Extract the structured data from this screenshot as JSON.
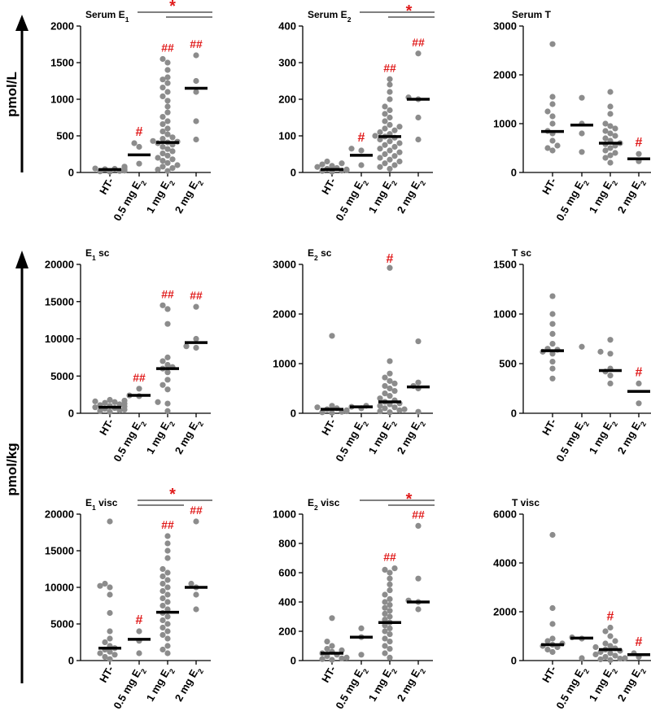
{
  "colors": {
    "dots": "#8c8c8c",
    "median": "#000000",
    "significance": "#e01b1b",
    "axis": "#000000"
  },
  "axis_labels": {
    "serum": "pmol/L",
    "tissue": "pmol/kg"
  },
  "groups": [
    "HT-",
    "0.5 mg E2",
    "1 mg E2",
    "2 mg E2"
  ],
  "chart_data": [
    {
      "type": "scatter",
      "id": "serum_e1",
      "title": "Serum E",
      "title_sub": "1",
      "ylim": [
        0,
        2000
      ],
      "yticks": [
        0,
        500,
        1000,
        1500,
        2000
      ],
      "medians": [
        40,
        240,
        410,
        1150
      ],
      "values": [
        [
          10,
          15,
          20,
          25,
          30,
          35,
          40,
          45,
          50,
          55,
          60,
          70,
          80
        ],
        [
          120,
          350,
          400
        ],
        [
          20,
          40,
          60,
          80,
          100,
          130,
          160,
          180,
          200,
          230,
          260,
          290,
          320,
          350,
          380,
          400,
          410,
          420,
          430,
          460,
          480,
          520,
          560,
          600,
          660,
          700,
          760,
          820,
          900,
          980,
          1040,
          1100,
          1160,
          1220,
          1270,
          1300,
          1400,
          1500,
          1550
        ],
        [
          450,
          700,
          1100,
          1250,
          1600
        ]
      ],
      "sig_markers": [
        "",
        "#",
        "##",
        "##"
      ],
      "brackets": [
        {
          "from_group": 1,
          "to_group": 3,
          "label": "*"
        },
        {
          "from_group": 2,
          "to_group": 3,
          "label": ""
        }
      ]
    },
    {
      "type": "scatter",
      "id": "serum_e2",
      "title": "Serum E",
      "title_sub": "2",
      "ylim": [
        0,
        400
      ],
      "yticks": [
        0,
        100,
        200,
        300,
        400
      ],
      "medians": [
        8,
        47,
        98,
        200
      ],
      "values": [
        [
          2,
          4,
          5,
          6,
          8,
          10,
          12,
          15,
          18,
          22,
          25,
          30
        ],
        [
          20,
          60,
          65
        ],
        [
          10,
          15,
          20,
          25,
          30,
          35,
          40,
          45,
          50,
          55,
          60,
          65,
          70,
          75,
          80,
          85,
          90,
          95,
          98,
          100,
          105,
          110,
          115,
          120,
          125,
          130,
          140,
          150,
          160,
          170,
          180,
          200,
          220,
          240,
          255
        ],
        [
          90,
          150,
          200,
          205,
          325
        ]
      ],
      "sig_markers": [
        "",
        "#",
        "##",
        "##"
      ],
      "brackets": [
        {
          "from_group": 1,
          "to_group": 3,
          "label": ""
        },
        {
          "from_group": 2,
          "to_group": 3,
          "label": "*"
        }
      ]
    },
    {
      "type": "scatter",
      "id": "serum_t",
      "title": "Serum T",
      "title_sub": "",
      "ylim": [
        0,
        3000
      ],
      "yticks": [
        0,
        1000,
        2000,
        3000
      ],
      "medians": [
        840,
        970,
        600,
        280
      ],
      "values": [
        [
          450,
          500,
          550,
          650,
          800,
          850,
          1000,
          1150,
          1250,
          1400,
          1550,
          2630
        ],
        [
          420,
          800,
          1000,
          1530
        ],
        [
          200,
          300,
          350,
          400,
          450,
          500,
          550,
          580,
          600,
          650,
          700,
          750,
          800,
          850,
          900,
          950,
          1000,
          1200,
          1350,
          1650
        ],
        [
          230,
          380
        ]
      ],
      "sig_markers": [
        "",
        "",
        "",
        "#"
      ],
      "brackets": []
    },
    {
      "type": "scatter",
      "id": "e1_sc",
      "title": "E",
      "title_sub": "1",
      "title_suffix": " sc",
      "ylim": [
        0,
        20000
      ],
      "yticks": [
        0,
        5000,
        10000,
        15000,
        20000
      ],
      "medians": [
        800,
        2400,
        6000,
        9500
      ],
      "values": [
        [
          200,
          300,
          400,
          500,
          600,
          700,
          800,
          900,
          1000,
          1100,
          1200,
          1300,
          1400,
          1500,
          1600,
          1700,
          1800
        ],
        [
          2300,
          2400,
          3300
        ],
        [
          300,
          1300,
          1500,
          3200,
          3800,
          4500,
          5500,
          6000,
          6200,
          6500,
          7000,
          7500,
          12000,
          14000,
          14500
        ],
        [
          8800,
          9000,
          10000,
          14300
        ]
      ],
      "sig_markers": [
        "",
        "##",
        "##",
        "##"
      ],
      "brackets": []
    },
    {
      "type": "scatter",
      "id": "e2_sc",
      "title": "E",
      "title_sub": "2",
      "title_suffix": " sc",
      "ylim": [
        0,
        3000
      ],
      "yticks": [
        0,
        1000,
        2000,
        3000
      ],
      "medians": [
        80,
        130,
        230,
        530
      ],
      "values": [
        [
          10,
          20,
          30,
          40,
          50,
          60,
          80,
          100,
          120,
          150,
          1560
        ],
        [
          100,
          130,
          150
        ],
        [
          20,
          40,
          60,
          80,
          100,
          120,
          150,
          180,
          200,
          230,
          260,
          300,
          350,
          400,
          450,
          500,
          550,
          600,
          650,
          720,
          800,
          1050,
          2930
        ],
        [
          30,
          500,
          550,
          620,
          1450
        ]
      ],
      "sig_markers": [
        "",
        "",
        "#",
        ""
      ],
      "brackets": []
    },
    {
      "type": "scatter",
      "id": "t_sc",
      "title": "T sc",
      "title_sub": "",
      "ylim": [
        0,
        1500
      ],
      "yticks": [
        0,
        500,
        1000,
        1500
      ],
      "medians": [
        630,
        null,
        430,
        220
      ],
      "values": [
        [
          350,
          450,
          520,
          600,
          620,
          640,
          650,
          700,
          800,
          900,
          1000,
          1180
        ],
        [
          670
        ],
        [
          300,
          380,
          420,
          450,
          600,
          620,
          740
        ],
        [
          100,
          300
        ]
      ],
      "sig_markers": [
        "",
        "",
        "",
        "#"
      ],
      "brackets": []
    },
    {
      "type": "scatter",
      "id": "e1_visc",
      "title": "E",
      "title_sub": "1",
      "title_suffix": " visc",
      "ylim": [
        0,
        20000
      ],
      "yticks": [
        0,
        5000,
        10000,
        15000,
        20000
      ],
      "medians": [
        1700,
        2900,
        6600,
        10000
      ],
      "values": [
        [
          200,
          500,
          800,
          1000,
          1200,
          1500,
          1700,
          2000,
          2500,
          3000,
          4000,
          6500,
          9000,
          10000,
          10200,
          10500,
          19000
        ],
        [
          1000,
          2700,
          4000
        ],
        [
          1000,
          1500,
          2000,
          3000,
          3500,
          4000,
          4500,
          5000,
          5500,
          6000,
          6500,
          7000,
          7500,
          8000,
          8500,
          9000,
          9500,
          10000,
          10500,
          11000,
          11500,
          12000,
          12500,
          14000,
          15000,
          16000,
          17000
        ],
        [
          7000,
          9000,
          10000,
          10500,
          19000
        ]
      ],
      "sig_markers": [
        "",
        "#",
        "##",
        "##"
      ],
      "brackets": [
        {
          "from_group": 1,
          "to_group": 3,
          "label": "*"
        },
        {
          "from_group": 1,
          "to_group": 2,
          "label": ""
        }
      ]
    },
    {
      "type": "scatter",
      "id": "e2_visc",
      "title": "E",
      "title_sub": "2",
      "title_suffix": " visc",
      "ylim": [
        0,
        1000
      ],
      "yticks": [
        0,
        200,
        400,
        600,
        800,
        1000
      ],
      "medians": [
        50,
        160,
        260,
        400
      ],
      "values": [
        [
          5,
          10,
          15,
          20,
          30,
          40,
          50,
          60,
          70,
          80,
          100,
          130,
          290
        ],
        [
          40,
          160,
          220
        ],
        [
          20,
          50,
          80,
          100,
          130,
          150,
          180,
          200,
          220,
          240,
          260,
          280,
          300,
          320,
          340,
          360,
          380,
          400,
          420,
          450,
          480,
          520,
          560,
          600,
          620,
          630
        ],
        [
          350,
          400,
          410,
          560,
          920
        ]
      ],
      "sig_markers": [
        "",
        "",
        "##",
        "##"
      ],
      "brackets": [
        {
          "from_group": 1,
          "to_group": 3,
          "label": ""
        },
        {
          "from_group": 2,
          "to_group": 3,
          "label": "*"
        }
      ]
    },
    {
      "type": "scatter",
      "id": "t_visc",
      "title": "T visc",
      "title_sub": "",
      "ylim": [
        0,
        6000
      ],
      "yticks": [
        0,
        2000,
        4000,
        6000
      ],
      "medians": [
        650,
        920,
        450,
        240
      ],
      "values": [
        [
          350,
          450,
          550,
          600,
          650,
          700,
          800,
          900,
          1500,
          2150,
          5150
        ],
        [
          100,
          900,
          950
        ],
        [
          20,
          50,
          80,
          100,
          150,
          200,
          250,
          300,
          350,
          400,
          450,
          500,
          550,
          600,
          700,
          800,
          1000,
          1200,
          1350
        ],
        [
          150,
          300
        ]
      ],
      "sig_markers": [
        "",
        "",
        "#",
        "#"
      ],
      "brackets": []
    }
  ]
}
